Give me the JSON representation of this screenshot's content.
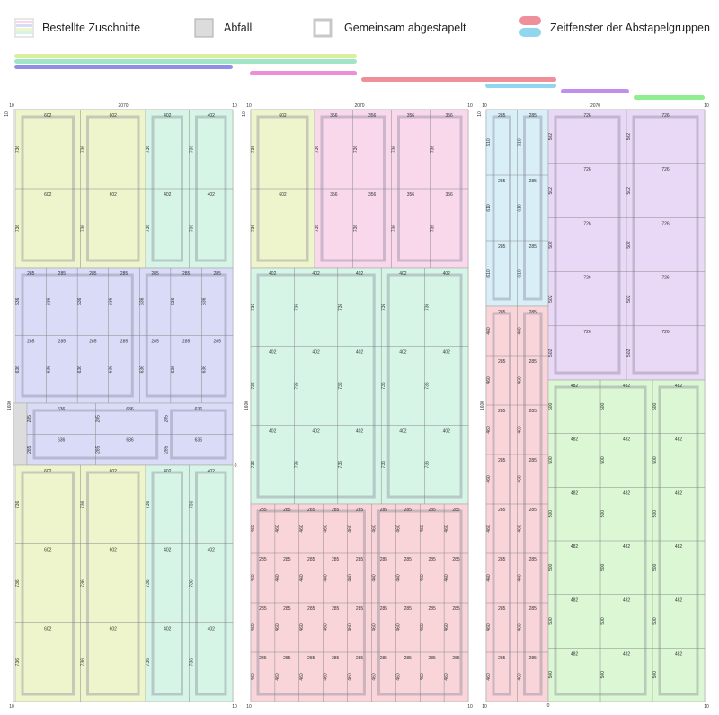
{
  "legend": {
    "ordered": "Bestellte Zuschnitte",
    "waste": "Abfall",
    "stacked": "Gemeinsam abgestapelt",
    "windows": "Zeitfenster der Abstapelgruppen"
  },
  "colors": {
    "yellow": "#eef5cc",
    "blue": "#d9dbf7",
    "mint": "#d6f5e7",
    "pink": "#f9d8ec",
    "red": "#f9d5da",
    "lightblue": "#d9eff8",
    "purple": "#ead9f6",
    "green": "#dbf7d3",
    "waste": "#dcdcdc",
    "bar_yellow": "#d8ef9e",
    "bar_mint": "#9fe6c6",
    "bar_blue": "#8f8fe8",
    "bar_pink": "#ee8ed6",
    "bar_red": "#ee8f9a",
    "bar_lightblue": "#8fd6ee",
    "bar_purple": "#c08fee",
    "bar_green": "#8fee8f"
  },
  "sheet_labels": {
    "width": "2070",
    "height": "1600",
    "edge": "10",
    "zero": "0"
  },
  "sheet1": {
    "blocks": [
      {
        "c": "yellow",
        "w": [
          "602",
          "602"
        ],
        "h": [
          "736",
          "736"
        ]
      },
      {
        "c": "mint",
        "w": [
          "402",
          "402"
        ],
        "h": [
          "736",
          "736"
        ]
      },
      {
        "c": "blue",
        "w": [
          "285",
          "285"
        ],
        "h": [
          "636",
          "636"
        ]
      },
      {
        "c": "blue",
        "w": [
          "636",
          "636",
          "636"
        ],
        "h": [
          "285",
          "285"
        ]
      },
      {
        "c": "yellow",
        "w": [
          "602",
          "602"
        ],
        "h": [
          "736",
          "736",
          "736"
        ]
      },
      {
        "c": "mint",
        "w": [
          "402",
          "402"
        ],
        "h": [
          "736",
          "736",
          "736"
        ]
      }
    ]
  },
  "sheet2": {
    "blocks": [
      {
        "c": "yellow",
        "w": [
          "602"
        ],
        "h": [
          "736",
          "736"
        ]
      },
      {
        "c": "pink",
        "w": [
          "356",
          "356"
        ],
        "h": [
          "736",
          "736"
        ]
      },
      {
        "c": "mint",
        "w": [
          "402",
          "402"
        ],
        "h": [
          "736",
          "736"
        ]
      },
      {
        "c": "red",
        "w": [
          "285",
          "285"
        ],
        "h": [
          "460",
          "460"
        ]
      }
    ]
  },
  "sheet3": {
    "blocks": [
      {
        "c": "lightblue",
        "w": [
          "285",
          "285"
        ],
        "h": [
          "610",
          "610"
        ]
      },
      {
        "c": "red",
        "w": [
          "285",
          "285"
        ],
        "h": [
          "460",
          "460"
        ]
      },
      {
        "c": "purple",
        "w": [
          "726",
          "726"
        ],
        "h": [
          "502",
          "502"
        ]
      },
      {
        "c": "green",
        "w": [
          "482",
          "482",
          "482"
        ],
        "h": [
          "500",
          "500"
        ]
      }
    ]
  }
}
